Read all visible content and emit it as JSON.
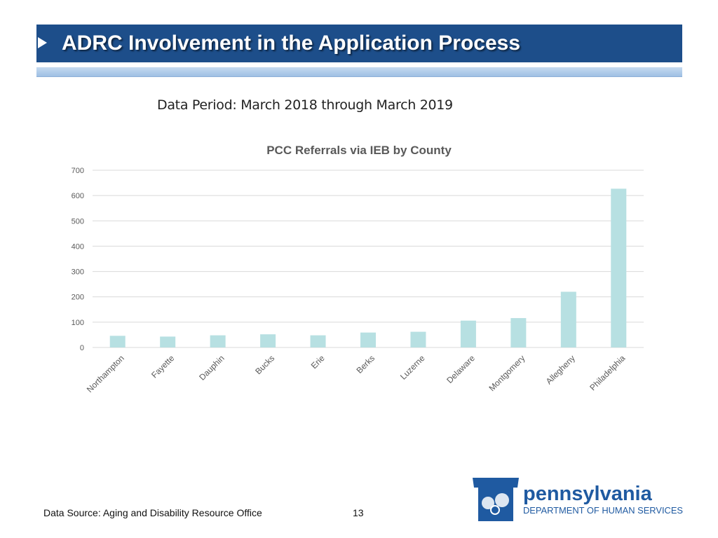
{
  "slide": {
    "title": "ADRC Involvement in the Application Process",
    "data_period": "Data Period: March 2018 through March 2019",
    "source": "Data Source: Aging and Disability Resource Office",
    "page_number": "13"
  },
  "logo": {
    "name": "pennsylvania",
    "subtitle": "DEPARTMENT OF HUMAN SERVICES"
  },
  "colors": {
    "title_bar": "#1d4e8a",
    "bar_fill": "#b7e0e2",
    "grid": "#d9d9d9",
    "logo_blue": "#1f5aa1"
  },
  "chart_data": {
    "type": "bar",
    "title": "PCC Referrals via IEB by County",
    "categories": [
      "Northampton",
      "Fayette",
      "Dauphin",
      "Bucks",
      "Erie",
      "Berks",
      "Luzerne",
      "Delaware",
      "Montgomery",
      "Allegheny",
      "Philadelphia"
    ],
    "values": [
      46,
      43,
      48,
      52,
      48,
      59,
      62,
      106,
      116,
      220,
      627
    ],
    "ylim": [
      0,
      700
    ],
    "yticks": [
      0,
      100,
      200,
      300,
      400,
      500,
      600,
      700
    ],
    "grid": true,
    "legend": "none"
  }
}
